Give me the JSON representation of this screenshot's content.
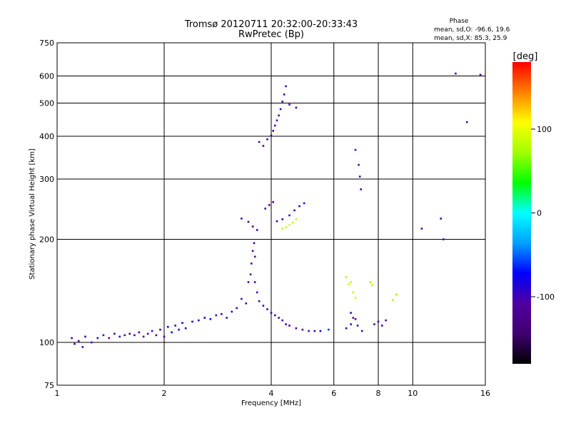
{
  "chart_data": {
    "type": "scatter",
    "title": "Tromsø 20120711 20:32:00-20:33:43",
    "subtitle": "RwPretec (Bp)",
    "xlabel": "Frequency [MHz]",
    "ylabel": "Stationary phase Virtual Height [km]",
    "x_scale": "log",
    "y_scale": "log",
    "xlim": [
      1,
      16
    ],
    "ylim": [
      75,
      750
    ],
    "x_ticks": [
      1,
      2,
      4,
      6,
      8,
      10,
      16
    ],
    "x_tick_labels": [
      "1",
      "2",
      "4",
      "6",
      "8",
      "10",
      "16"
    ],
    "y_ticks": [
      75,
      100,
      200,
      300,
      400,
      500,
      600,
      750
    ],
    "y_tick_labels": [
      "75",
      "100",
      "200",
      "300",
      "400",
      "500",
      "600",
      "750"
    ],
    "grid": true,
    "stats": {
      "heading": "Phase",
      "line_o": "mean, sd,O: -96.6, 19.6",
      "line_x": "mean, sd,X: 85.3, 25.9"
    },
    "colorbar": {
      "label": "[deg]",
      "range": [
        -180,
        180
      ],
      "ticks": [
        100,
        0,
        -100
      ],
      "tick_labels": [
        "100",
        "0",
        "-100"
      ],
      "stops": [
        "#000000",
        "#400070",
        "#5000a0",
        "#0000ff",
        "#00a0ff",
        "#00ffff",
        "#00ff00",
        "#a0ff00",
        "#ffff00",
        "#ff8000",
        "#ff0000"
      ]
    },
    "series": [
      {
        "points": [
          [
            1.1,
            103,
            -110
          ],
          [
            1.12,
            99,
            -100
          ],
          [
            1.15,
            101,
            -105
          ],
          [
            1.18,
            97,
            -95
          ],
          [
            1.2,
            104,
            -110
          ],
          [
            1.25,
            100,
            -100
          ],
          [
            1.3,
            103,
            -90
          ],
          [
            1.35,
            105,
            -105
          ],
          [
            1.4,
            103,
            -110
          ],
          [
            1.45,
            106,
            -100
          ],
          [
            1.5,
            104,
            -95
          ],
          [
            1.55,
            105,
            -110
          ],
          [
            1.6,
            106,
            -100
          ],
          [
            1.65,
            105,
            -105
          ],
          [
            1.7,
            107,
            -90
          ],
          [
            1.75,
            104,
            -110
          ],
          [
            1.8,
            106,
            -100
          ],
          [
            1.85,
            108,
            -95
          ],
          [
            1.9,
            105,
            -110
          ],
          [
            1.95,
            109,
            -100
          ],
          [
            2.0,
            104,
            -105
          ],
          [
            2.05,
            111,
            -90
          ],
          [
            2.1,
            107,
            -80
          ],
          [
            2.15,
            112,
            -75
          ],
          [
            2.2,
            109,
            -70
          ],
          [
            2.25,
            114,
            -80
          ],
          [
            2.3,
            110,
            -75
          ],
          [
            2.4,
            115,
            -70
          ],
          [
            2.5,
            116,
            -80
          ],
          [
            2.6,
            118,
            -75
          ],
          [
            2.7,
            117,
            -70
          ],
          [
            2.8,
            120,
            -90
          ],
          [
            2.9,
            121,
            -100
          ],
          [
            3.0,
            118,
            -110
          ],
          [
            3.1,
            123,
            -100
          ],
          [
            3.2,
            126,
            -95
          ],
          [
            3.3,
            134,
            -110
          ],
          [
            3.4,
            130,
            -105
          ],
          [
            3.45,
            150,
            -110
          ],
          [
            3.5,
            158,
            -120
          ],
          [
            3.52,
            170,
            -115
          ],
          [
            3.55,
            185,
            -110
          ],
          [
            3.58,
            195,
            -115
          ],
          [
            3.6,
            150,
            -120
          ],
          [
            3.6,
            178,
            -110
          ],
          [
            3.65,
            140,
            -105
          ],
          [
            3.7,
            132,
            -130
          ],
          [
            3.8,
            128,
            -120
          ],
          [
            3.9,
            125,
            -110
          ],
          [
            4.0,
            122,
            -100
          ],
          [
            4.1,
            120,
            -105
          ],
          [
            4.2,
            118,
            -110
          ],
          [
            4.3,
            116,
            -100
          ],
          [
            4.4,
            113,
            -110
          ],
          [
            4.5,
            112,
            -120
          ],
          [
            4.7,
            110,
            -115
          ],
          [
            4.9,
            109,
            -110
          ],
          [
            5.1,
            108,
            -100
          ],
          [
            5.3,
            108,
            -95
          ],
          [
            5.5,
            108,
            -80
          ],
          [
            5.8,
            109,
            -60
          ],
          [
            3.3,
            230,
            -120
          ],
          [
            3.45,
            225,
            -130
          ],
          [
            3.55,
            218,
            -125
          ],
          [
            3.65,
            213,
            -120
          ],
          [
            3.85,
            246,
            -115
          ],
          [
            3.95,
            252,
            -120
          ],
          [
            4.05,
            257,
            -110
          ],
          [
            4.15,
            226,
            -105
          ],
          [
            4.3,
            229,
            -100
          ],
          [
            4.5,
            235,
            -110
          ],
          [
            4.65,
            243,
            -100
          ],
          [
            4.8,
            250,
            -90
          ],
          [
            4.95,
            255,
            -95
          ],
          [
            4.3,
            215,
            80
          ],
          [
            4.4,
            217,
            85
          ],
          [
            4.5,
            220,
            90
          ],
          [
            4.6,
            224,
            85
          ],
          [
            4.7,
            229,
            80
          ],
          [
            3.7,
            385,
            -110
          ],
          [
            3.8,
            375,
            -120
          ],
          [
            3.9,
            392,
            -105
          ],
          [
            4.0,
            402,
            -110
          ],
          [
            4.05,
            415,
            -100
          ],
          [
            4.1,
            430,
            -110
          ],
          [
            4.15,
            445,
            -105
          ],
          [
            4.2,
            460,
            -110
          ],
          [
            4.25,
            480,
            -100
          ],
          [
            4.3,
            505,
            -110
          ],
          [
            4.35,
            530,
            -105
          ],
          [
            4.4,
            560,
            -100
          ],
          [
            4.5,
            495,
            -110
          ],
          [
            4.7,
            485,
            -105
          ],
          [
            6.5,
            155,
            80
          ],
          [
            6.6,
            148,
            90
          ],
          [
            6.7,
            150,
            85
          ],
          [
            6.8,
            140,
            80
          ],
          [
            6.9,
            135,
            95
          ],
          [
            6.7,
            122,
            -100
          ],
          [
            6.8,
            118,
            -110
          ],
          [
            6.9,
            117,
            -100
          ],
          [
            6.5,
            110,
            -105
          ],
          [
            6.7,
            113,
            -100
          ],
          [
            7.0,
            112,
            -110
          ],
          [
            7.2,
            108,
            -100
          ],
          [
            7.8,
            113,
            -110
          ],
          [
            8.0,
            115,
            -105
          ],
          [
            8.2,
            112,
            -100
          ],
          [
            8.4,
            116,
            -110
          ],
          [
            7.6,
            150,
            70
          ],
          [
            7.7,
            147,
            80
          ],
          [
            8.8,
            133,
            75
          ],
          [
            9.0,
            138,
            70
          ],
          [
            7.1,
            305,
            -110
          ],
          [
            7.15,
            280,
            -105
          ],
          [
            7.05,
            330,
            -100
          ],
          [
            6.9,
            365,
            -110
          ],
          [
            10.6,
            215,
            -105
          ],
          [
            12.0,
            230,
            -110
          ],
          [
            12.2,
            200,
            -100
          ],
          [
            15.5,
            605,
            -110
          ],
          [
            14.2,
            440,
            -120
          ],
          [
            13.2,
            610,
            -100
          ]
        ]
      }
    ]
  }
}
